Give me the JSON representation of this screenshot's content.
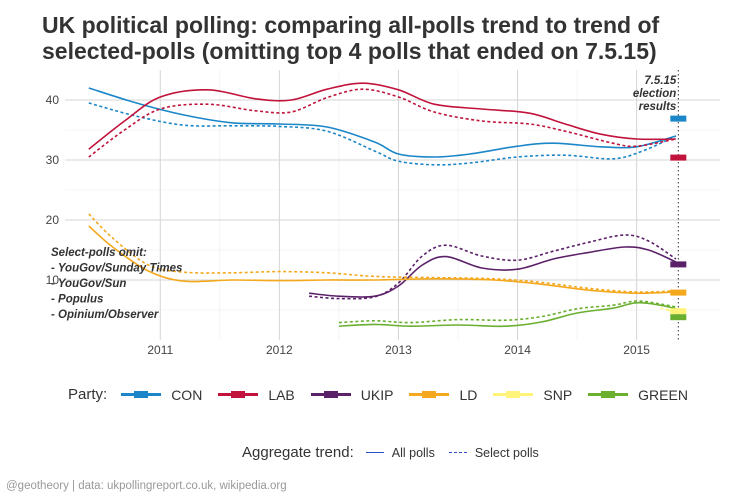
{
  "title": "UK political polling: comparing all-polls trend to trend of selected-polls (omitting top 4 polls that ended on 7.5.15)",
  "footer": "@geotheory | data: ukpollingreport.co.uk, wikipedia.org",
  "chart_data": {
    "type": "line",
    "x_ticks": [
      "2011",
      "2012",
      "2013",
      "2014",
      "2015"
    ],
    "x_tick_values": [
      2011,
      2012,
      2013,
      2014,
      2015
    ],
    "xlim": [
      2010.2,
      2015.7
    ],
    "y_ticks": [
      "10",
      "20",
      "30",
      "40"
    ],
    "y_tick_values": [
      10,
      20,
      30,
      40
    ],
    "ylim": [
      0,
      45
    ],
    "grid": true,
    "legend_position": "bottom",
    "annotations": {
      "election_line": [
        "7.5.15",
        "election",
        "results"
      ],
      "select_note": [
        "Select-polls omit:",
        "- YouGov/Sunday Times",
        "- YouGov/Sun",
        "- Populus",
        "- Opinium/Observer"
      ]
    },
    "party_legend_title": "Party:",
    "trend_legend": {
      "title": "Aggregate trend:",
      "all": "All polls",
      "select": "Select polls"
    },
    "election_x": 2015.35,
    "series": [
      {
        "name": "CON",
        "color": "#1b86c8",
        "all": [
          [
            2010.4,
            42
          ],
          [
            2010.8,
            39.5
          ],
          [
            2011.2,
            37.5
          ],
          [
            2011.6,
            36.2
          ],
          [
            2012.0,
            36
          ],
          [
            2012.4,
            35.5
          ],
          [
            2012.8,
            33
          ],
          [
            2013.0,
            31
          ],
          [
            2013.3,
            30.5
          ],
          [
            2013.6,
            31
          ],
          [
            2014.0,
            32.3
          ],
          [
            2014.3,
            32.8
          ],
          [
            2014.7,
            32.2
          ],
          [
            2015.0,
            32.2
          ],
          [
            2015.33,
            34
          ]
        ],
        "select": [
          [
            2010.4,
            39.5
          ],
          [
            2010.8,
            37.3
          ],
          [
            2011.2,
            35.8
          ],
          [
            2011.6,
            35.7
          ],
          [
            2012.0,
            35.6
          ],
          [
            2012.4,
            34.8
          ],
          [
            2012.8,
            31.5
          ],
          [
            2013.0,
            29.8
          ],
          [
            2013.3,
            29.2
          ],
          [
            2013.6,
            29.5
          ],
          [
            2014.0,
            30.5
          ],
          [
            2014.4,
            30.8
          ],
          [
            2014.8,
            30.2
          ],
          [
            2015.05,
            31.5
          ],
          [
            2015.33,
            34
          ]
        ],
        "result": 36.9
      },
      {
        "name": "LAB",
        "color": "#c1133b",
        "all": [
          [
            2010.4,
            31.8
          ],
          [
            2010.7,
            36.5
          ],
          [
            2011.0,
            40.5
          ],
          [
            2011.4,
            41.7
          ],
          [
            2011.8,
            40.2
          ],
          [
            2012.1,
            40
          ],
          [
            2012.4,
            41.8
          ],
          [
            2012.7,
            42.8
          ],
          [
            2013.0,
            41.7
          ],
          [
            2013.3,
            39.3
          ],
          [
            2013.7,
            38.5
          ],
          [
            2014.1,
            37.8
          ],
          [
            2014.4,
            36
          ],
          [
            2014.7,
            34.3
          ],
          [
            2015.0,
            33.5
          ],
          [
            2015.33,
            33.5
          ]
        ],
        "select": [
          [
            2010.4,
            30.5
          ],
          [
            2010.7,
            35
          ],
          [
            2011.0,
            38.5
          ],
          [
            2011.4,
            39.3
          ],
          [
            2011.8,
            38.2
          ],
          [
            2012.1,
            38
          ],
          [
            2012.4,
            40.4
          ],
          [
            2012.7,
            41.8
          ],
          [
            2013.0,
            40.5
          ],
          [
            2013.3,
            38
          ],
          [
            2013.7,
            36.5
          ],
          [
            2014.1,
            36
          ],
          [
            2014.4,
            34.8
          ],
          [
            2014.8,
            32.8
          ],
          [
            2015.0,
            32.3
          ],
          [
            2015.33,
            33.5
          ]
        ],
        "result": 30.4
      },
      {
        "name": "UKIP",
        "color": "#5b2168",
        "all": [
          [
            2012.25,
            7.8
          ],
          [
            2012.5,
            7.3
          ],
          [
            2012.8,
            7.3
          ],
          [
            2013.0,
            9
          ],
          [
            2013.2,
            12.5
          ],
          [
            2013.4,
            13.9
          ],
          [
            2013.7,
            12
          ],
          [
            2014.0,
            11.8
          ],
          [
            2014.3,
            13.5
          ],
          [
            2014.6,
            14.6
          ],
          [
            2014.9,
            15.5
          ],
          [
            2015.1,
            15
          ],
          [
            2015.33,
            13
          ]
        ],
        "select": [
          [
            2012.25,
            7.3
          ],
          [
            2012.5,
            6.9
          ],
          [
            2012.8,
            7.2
          ],
          [
            2013.0,
            9.5
          ],
          [
            2013.2,
            14
          ],
          [
            2013.4,
            15.8
          ],
          [
            2013.7,
            14
          ],
          [
            2014.0,
            13.3
          ],
          [
            2014.3,
            14.8
          ],
          [
            2014.6,
            16.3
          ],
          [
            2014.9,
            17.5
          ],
          [
            2015.1,
            16.5
          ],
          [
            2015.33,
            13.5
          ]
        ],
        "result": 12.6
      },
      {
        "name": "LD",
        "color": "#f4a81d",
        "all": [
          [
            2010.4,
            19
          ],
          [
            2010.6,
            15.5
          ],
          [
            2010.9,
            11.5
          ],
          [
            2011.2,
            9.8
          ],
          [
            2011.6,
            10
          ],
          [
            2012.0,
            9.9
          ],
          [
            2012.4,
            10
          ],
          [
            2012.8,
            10
          ],
          [
            2013.3,
            10.2
          ],
          [
            2013.8,
            10
          ],
          [
            2014.2,
            9.3
          ],
          [
            2014.6,
            8.3
          ],
          [
            2015.0,
            7.8
          ],
          [
            2015.33,
            8
          ]
        ],
        "select": [
          [
            2010.4,
            21
          ],
          [
            2010.6,
            17
          ],
          [
            2010.9,
            12.5
          ],
          [
            2011.2,
            11.3
          ],
          [
            2011.6,
            11.2
          ],
          [
            2012.0,
            11.4
          ],
          [
            2012.4,
            11.2
          ],
          [
            2012.8,
            10.6
          ],
          [
            2013.3,
            10.4
          ],
          [
            2013.8,
            10.2
          ],
          [
            2014.2,
            9.6
          ],
          [
            2014.6,
            8.6
          ],
          [
            2015.0,
            8
          ],
          [
            2015.33,
            8.2
          ]
        ],
        "result": 7.9
      },
      {
        "name": "SNP",
        "color": "#fff37a",
        "all": [
          [
            2015.25,
            5
          ],
          [
            2015.33,
            4.8
          ]
        ],
        "select": [
          [
            2015.2,
            5.3
          ],
          [
            2015.33,
            4.8
          ]
        ],
        "result": 4.8
      },
      {
        "name": "GREEN",
        "color": "#6aaf30",
        "all": [
          [
            2012.5,
            2.3
          ],
          [
            2012.8,
            2.6
          ],
          [
            2013.1,
            2.3
          ],
          [
            2013.5,
            2.5
          ],
          [
            2013.9,
            2.3
          ],
          [
            2014.2,
            3
          ],
          [
            2014.5,
            4.5
          ],
          [
            2014.8,
            5.3
          ],
          [
            2015.0,
            6.2
          ],
          [
            2015.2,
            5.8
          ],
          [
            2015.33,
            5.2
          ]
        ],
        "select": [
          [
            2012.5,
            2.9
          ],
          [
            2012.8,
            3.2
          ],
          [
            2013.1,
            2.9
          ],
          [
            2013.5,
            3.4
          ],
          [
            2013.9,
            3.3
          ],
          [
            2014.2,
            3.9
          ],
          [
            2014.5,
            5.2
          ],
          [
            2014.8,
            5.8
          ],
          [
            2015.0,
            6.5
          ],
          [
            2015.2,
            6
          ],
          [
            2015.33,
            5.5
          ]
        ],
        "result": 3.8
      }
    ]
  }
}
